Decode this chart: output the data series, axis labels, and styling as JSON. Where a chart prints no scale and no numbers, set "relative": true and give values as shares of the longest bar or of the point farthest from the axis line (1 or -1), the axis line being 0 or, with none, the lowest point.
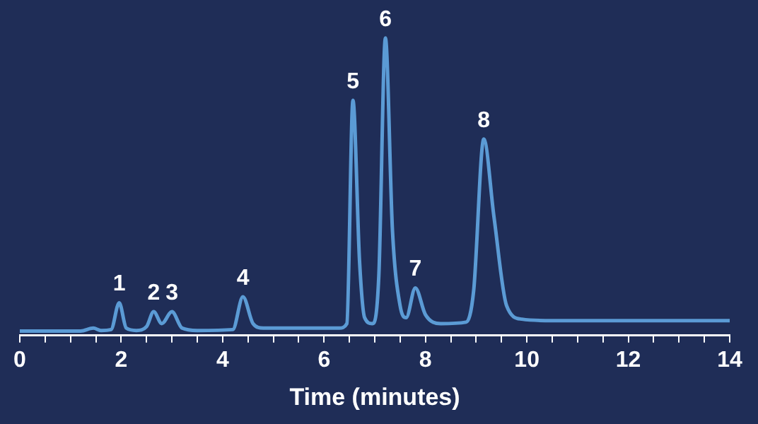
{
  "chart_data": {
    "type": "line",
    "relative": true,
    "xlabel": "Time (minutes)",
    "x": [
      0,
      1.2,
      1.45,
      1.6,
      1.8,
      1.96,
      2.1,
      2.3,
      2.5,
      2.64,
      2.8,
      3.0,
      3.2,
      3.5,
      4.2,
      4.4,
      4.6,
      4.8,
      6.3,
      6.45,
      6.57,
      6.7,
      6.8,
      6.95,
      7.08,
      7.21,
      7.35,
      7.5,
      7.62,
      7.8,
      8.0,
      8.3,
      8.8,
      8.95,
      9.15,
      9.35,
      9.6,
      9.9,
      10.5,
      14
    ],
    "series": [
      {
        "color": "#5b9bd5",
        "values": [
          0.015,
          0.015,
          0.025,
          0.017,
          0.02,
          0.11,
          0.025,
          0.017,
          0.03,
          0.08,
          0.04,
          0.08,
          0.025,
          0.017,
          0.02,
          0.13,
          0.04,
          0.025,
          0.025,
          0.04,
          0.79,
          0.25,
          0.06,
          0.04,
          0.2,
          1,
          0.35,
          0.1,
          0.06,
          0.16,
          0.07,
          0.04,
          0.045,
          0.15,
          0.66,
          0.4,
          0.1,
          0.055,
          0.05,
          0.05
        ]
      }
    ],
    "xlim": [
      0,
      14
    ],
    "xticks": [
      0,
      {
        "value": 0.5,
        "label": null
      },
      2,
      {
        "value": 1,
        "label": null
      },
      {
        "value": 1.5,
        "label": null
      },
      {
        "value": 2.5,
        "label": null
      },
      {
        "value": 3,
        "label": null
      },
      {
        "value": 3.5,
        "label": null
      },
      4,
      {
        "value": 4.5,
        "label": null
      },
      {
        "value": 5,
        "label": null
      },
      {
        "value": 5.5,
        "label": null
      },
      6,
      {
        "value": 6.5,
        "label": null
      },
      {
        "value": 7,
        "label": null
      },
      {
        "value": 7.5,
        "label": null
      },
      8,
      {
        "value": 8.5,
        "label": null
      },
      {
        "value": 9,
        "label": null
      },
      {
        "value": 9.5,
        "label": null
      },
      10,
      {
        "value": 10.5,
        "label": null
      },
      {
        "value": 11,
        "label": null
      },
      {
        "value": 11.5,
        "label": null
      },
      12,
      {
        "value": 12.5,
        "label": null
      },
      {
        "value": 13,
        "label": null
      },
      {
        "value": 13.5,
        "label": null
      },
      14
    ],
    "grid": false,
    "marker": "none",
    "line_style": "solid",
    "annotations": [
      {
        "text": "1",
        "x": 1.96,
        "y": 0.11
      },
      {
        "text": "2",
        "x": 2.64,
        "y": 0.08
      },
      {
        "text": "3",
        "x": 3.0,
        "y": 0.08
      },
      {
        "text": "4",
        "x": 4.4,
        "y": 0.13
      },
      {
        "text": "5",
        "x": 6.57,
        "y": 0.79
      },
      {
        "text": "6",
        "x": 7.21,
        "y": 1
      },
      {
        "text": "7",
        "x": 7.8,
        "y": 0.16
      },
      {
        "text": "8",
        "x": 9.15,
        "y": 0.66
      }
    ]
  }
}
